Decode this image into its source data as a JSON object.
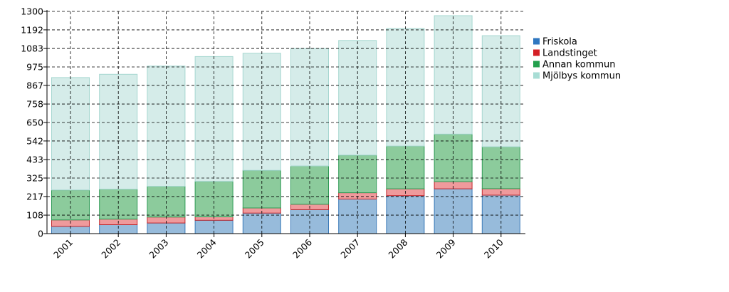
{
  "chart_data": {
    "type": "bar",
    "stacked": true,
    "categories": [
      "2001",
      "2002",
      "2003",
      "2004",
      "2005",
      "2006",
      "2007",
      "2008",
      "2009",
      "2010"
    ],
    "series": [
      {
        "name": "Friskola",
        "color": "#97bbdb",
        "edge": "#3a7ab8",
        "legend_color": "#2f77c0",
        "values": [
          42,
          52,
          62,
          78,
          120,
          140,
          202,
          222,
          262,
          225
        ]
      },
      {
        "name": "Landstinget",
        "color": "#ef9a9c",
        "edge": "#c0282e",
        "legend_color": "#d42026",
        "values": [
          38,
          33,
          35,
          20,
          30,
          32,
          37,
          40,
          42,
          38
        ]
      },
      {
        "name": "Annan kommun",
        "color": "#8ccb9c",
        "edge": "#2e9a55",
        "legend_color": "#23a04d",
        "values": [
          175,
          175,
          180,
          208,
          220,
          224,
          220,
          250,
          278,
          245
        ]
      },
      {
        "name": "Mjölbys kommun",
        "color": "#d5ece9",
        "edge": "#a6d7d0",
        "legend_color": "#a8ddd5",
        "values": [
          658,
          672,
          703,
          730,
          685,
          687,
          671,
          688,
          693,
          650
        ]
      }
    ],
    "y_ticks": [
      "0",
      "108",
      "217",
      "325",
      "433",
      "542",
      "650",
      "758",
      "867",
      "975",
      "1083",
      "1192",
      "1300"
    ],
    "ylim": [
      0,
      1300
    ],
    "grid": true,
    "legend_position": "right"
  }
}
